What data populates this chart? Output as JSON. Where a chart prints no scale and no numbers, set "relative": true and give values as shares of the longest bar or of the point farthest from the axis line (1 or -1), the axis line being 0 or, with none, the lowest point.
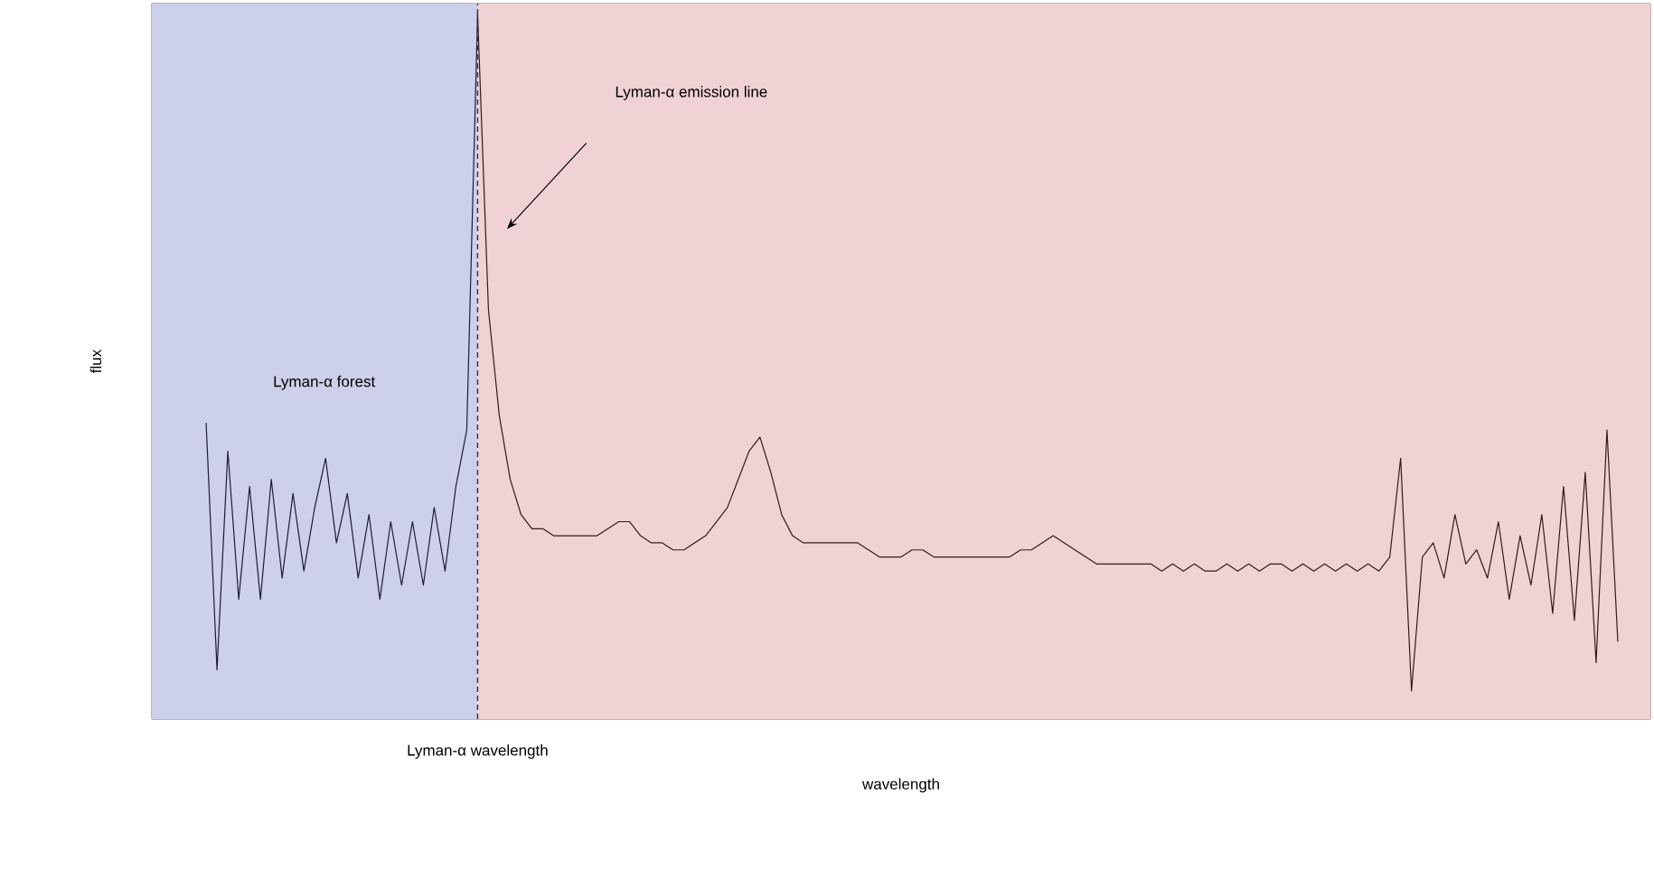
{
  "chart_data": {
    "type": "line",
    "relative": true,
    "xlabel": "wavelength",
    "ylabel": "flux",
    "categories": [
      null,
      null,
      null,
      null,
      null,
      null,
      null,
      null,
      null,
      null,
      null,
      null,
      null,
      null,
      null,
      null,
      null,
      null,
      null,
      null,
      null,
      null,
      null,
      null,
      null,
      null,
      null,
      null,
      null,
      null,
      null,
      null,
      null,
      null,
      null,
      null,
      null,
      null,
      null,
      null,
      null,
      null,
      null,
      null,
      null,
      null,
      null,
      null,
      null,
      null,
      null,
      null,
      null,
      null,
      null,
      null,
      null,
      null,
      null,
      null,
      null,
      null,
      null,
      null,
      null,
      null,
      null,
      null,
      null,
      null,
      null,
      null,
      null,
      null,
      null,
      null,
      null,
      null,
      null,
      null,
      null,
      null,
      null,
      null,
      null,
      null,
      null,
      null,
      null,
      null,
      null,
      null,
      null,
      null,
      null,
      null,
      null,
      null,
      null,
      null,
      null,
      null,
      null,
      null,
      null,
      null,
      null,
      null,
      null,
      null,
      null,
      null,
      null,
      null,
      null,
      null,
      null,
      null,
      null,
      null,
      null,
      null,
      null,
      null,
      null,
      null,
      null,
      null,
      null,
      null,
      null,
      null,
      null,
      null,
      null,
      null,
      null,
      null,
      null
    ],
    "series": [
      {
        "color": "#1c1c3c",
        "values": [
          null,
          null,
          null,
          null,
          null,
          0.42,
          0.07,
          0.38,
          0.17,
          0.33,
          0.17,
          0.34,
          0.2,
          0.32,
          0.21,
          0.3,
          0.37,
          0.25,
          0.32,
          0.2,
          0.29,
          0.17,
          0.28,
          0.19,
          0.28,
          0.19,
          0.3,
          0.21,
          0.33,
          0.41,
          1,
          null,
          null,
          null,
          null,
          null,
          null,
          null,
          null,
          null,
          null,
          null,
          null,
          null,
          null,
          null,
          null,
          null,
          null,
          null,
          null,
          null,
          null,
          null,
          null,
          null,
          null,
          null,
          null,
          null,
          null,
          null,
          null,
          null,
          null,
          null,
          null,
          null,
          null,
          null,
          null,
          null,
          null,
          null,
          null,
          null,
          null,
          null,
          null,
          null,
          null,
          null,
          null,
          null,
          null,
          null,
          null,
          null,
          null,
          null,
          null,
          null,
          null,
          null,
          null,
          null,
          null,
          null,
          null,
          null,
          null,
          null,
          null,
          null,
          null,
          null,
          null,
          null,
          null,
          null,
          null,
          null,
          null,
          null,
          null,
          null,
          null,
          null,
          null,
          null,
          null,
          null,
          null,
          null,
          null,
          null,
          null,
          null,
          null,
          null,
          null,
          null,
          null,
          null,
          null,
          null,
          null,
          null,
          null
        ]
      },
      {
        "color": "#3a1818",
        "values": [
          null,
          null,
          null,
          null,
          null,
          null,
          null,
          null,
          null,
          null,
          null,
          null,
          null,
          null,
          null,
          null,
          null,
          null,
          null,
          null,
          null,
          null,
          null,
          null,
          null,
          null,
          null,
          null,
          null,
          null,
          1,
          0.58,
          0.43,
          0.34,
          0.29,
          0.27,
          0.27,
          0.26,
          0.26,
          0.26,
          0.26,
          0.26,
          0.27,
          0.28,
          0.28,
          0.26,
          0.25,
          0.25,
          0.24,
          0.24,
          0.25,
          0.26,
          0.28,
          0.3,
          0.34,
          0.38,
          0.4,
          0.35,
          0.29,
          0.26,
          0.25,
          0.25,
          0.25,
          0.25,
          0.25,
          0.25,
          0.24,
          0.23,
          0.23,
          0.23,
          0.24,
          0.24,
          0.23,
          0.23,
          0.23,
          0.23,
          0.23,
          0.23,
          0.23,
          0.23,
          0.24,
          0.24,
          0.25,
          0.26,
          0.25,
          0.24,
          0.23,
          0.22,
          0.22,
          0.22,
          0.22,
          0.22,
          0.22,
          0.21,
          0.22,
          0.21,
          0.22,
          0.21,
          0.21,
          0.22,
          0.21,
          0.22,
          0.21,
          0.22,
          0.22,
          0.21,
          0.22,
          0.21,
          0.22,
          0.21,
          0.22,
          0.21,
          0.22,
          0.21,
          0.23,
          0.37,
          0.04,
          0.23,
          0.25,
          0.2,
          0.29,
          0.22,
          0.24,
          0.2,
          0.28,
          0.17,
          0.26,
          0.19,
          0.29,
          0.15,
          0.33,
          0.14,
          0.35,
          0.08,
          0.41,
          0.11,
          null,
          null,
          null
        ]
      }
    ],
    "annotations": [
      "Lyman-α forest",
      "Lyman-α emission line",
      "Lyman-α wavelength"
    ]
  }
}
